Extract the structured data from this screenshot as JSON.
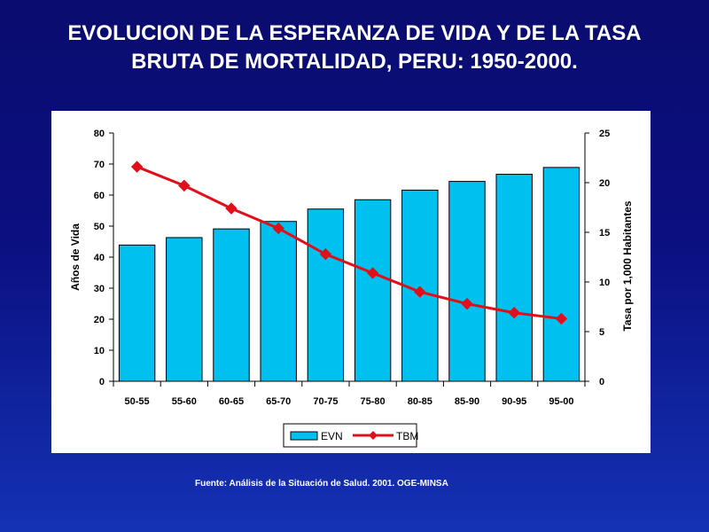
{
  "slide": {
    "title_line1": "EVOLUCION DE LA ESPERANZA DE VIDA Y DE LA TASA",
    "title_line2": "BRUTA DE MORTALIDAD, PERU: 1950-2000.",
    "source": "Fuente:  Análisis de la Situación de Salud. 2001. OGE-MINSA"
  },
  "colors": {
    "background_top": "#0a0c6e",
    "background_bottom": "#1432b4",
    "bar_fill": "#00c0f0",
    "line": "#e0101a"
  },
  "chart_data": {
    "type": "bar+line",
    "categories": [
      "50-55",
      "55-60",
      "60-65",
      "65-70",
      "70-75",
      "75-80",
      "80-85",
      "85-90",
      "90-95",
      "95-00"
    ],
    "series": [
      {
        "name": "EVN",
        "type": "bar",
        "axis": "left",
        "values": [
          43.9,
          46.3,
          49.1,
          51.5,
          55.5,
          58.5,
          61.6,
          64.4,
          66.7,
          68.9
        ]
      },
      {
        "name": "TBM",
        "type": "line",
        "axis": "right",
        "values": [
          21.6,
          19.7,
          17.4,
          15.4,
          12.8,
          10.9,
          9.0,
          7.8,
          6.9,
          6.3
        ]
      }
    ],
    "ylabel": "Años de Vida",
    "y2label": "Tasa por 1,000 Habitantes",
    "ylim": [
      0,
      80
    ],
    "y2lim": [
      0,
      25
    ],
    "yticks": [
      "0",
      "10",
      "20",
      "30",
      "40",
      "50",
      "60",
      "70",
      "80"
    ],
    "y2ticks": [
      "0",
      "5",
      "10",
      "15",
      "20",
      "25"
    ],
    "legend_position": "bottom",
    "grid": false
  }
}
